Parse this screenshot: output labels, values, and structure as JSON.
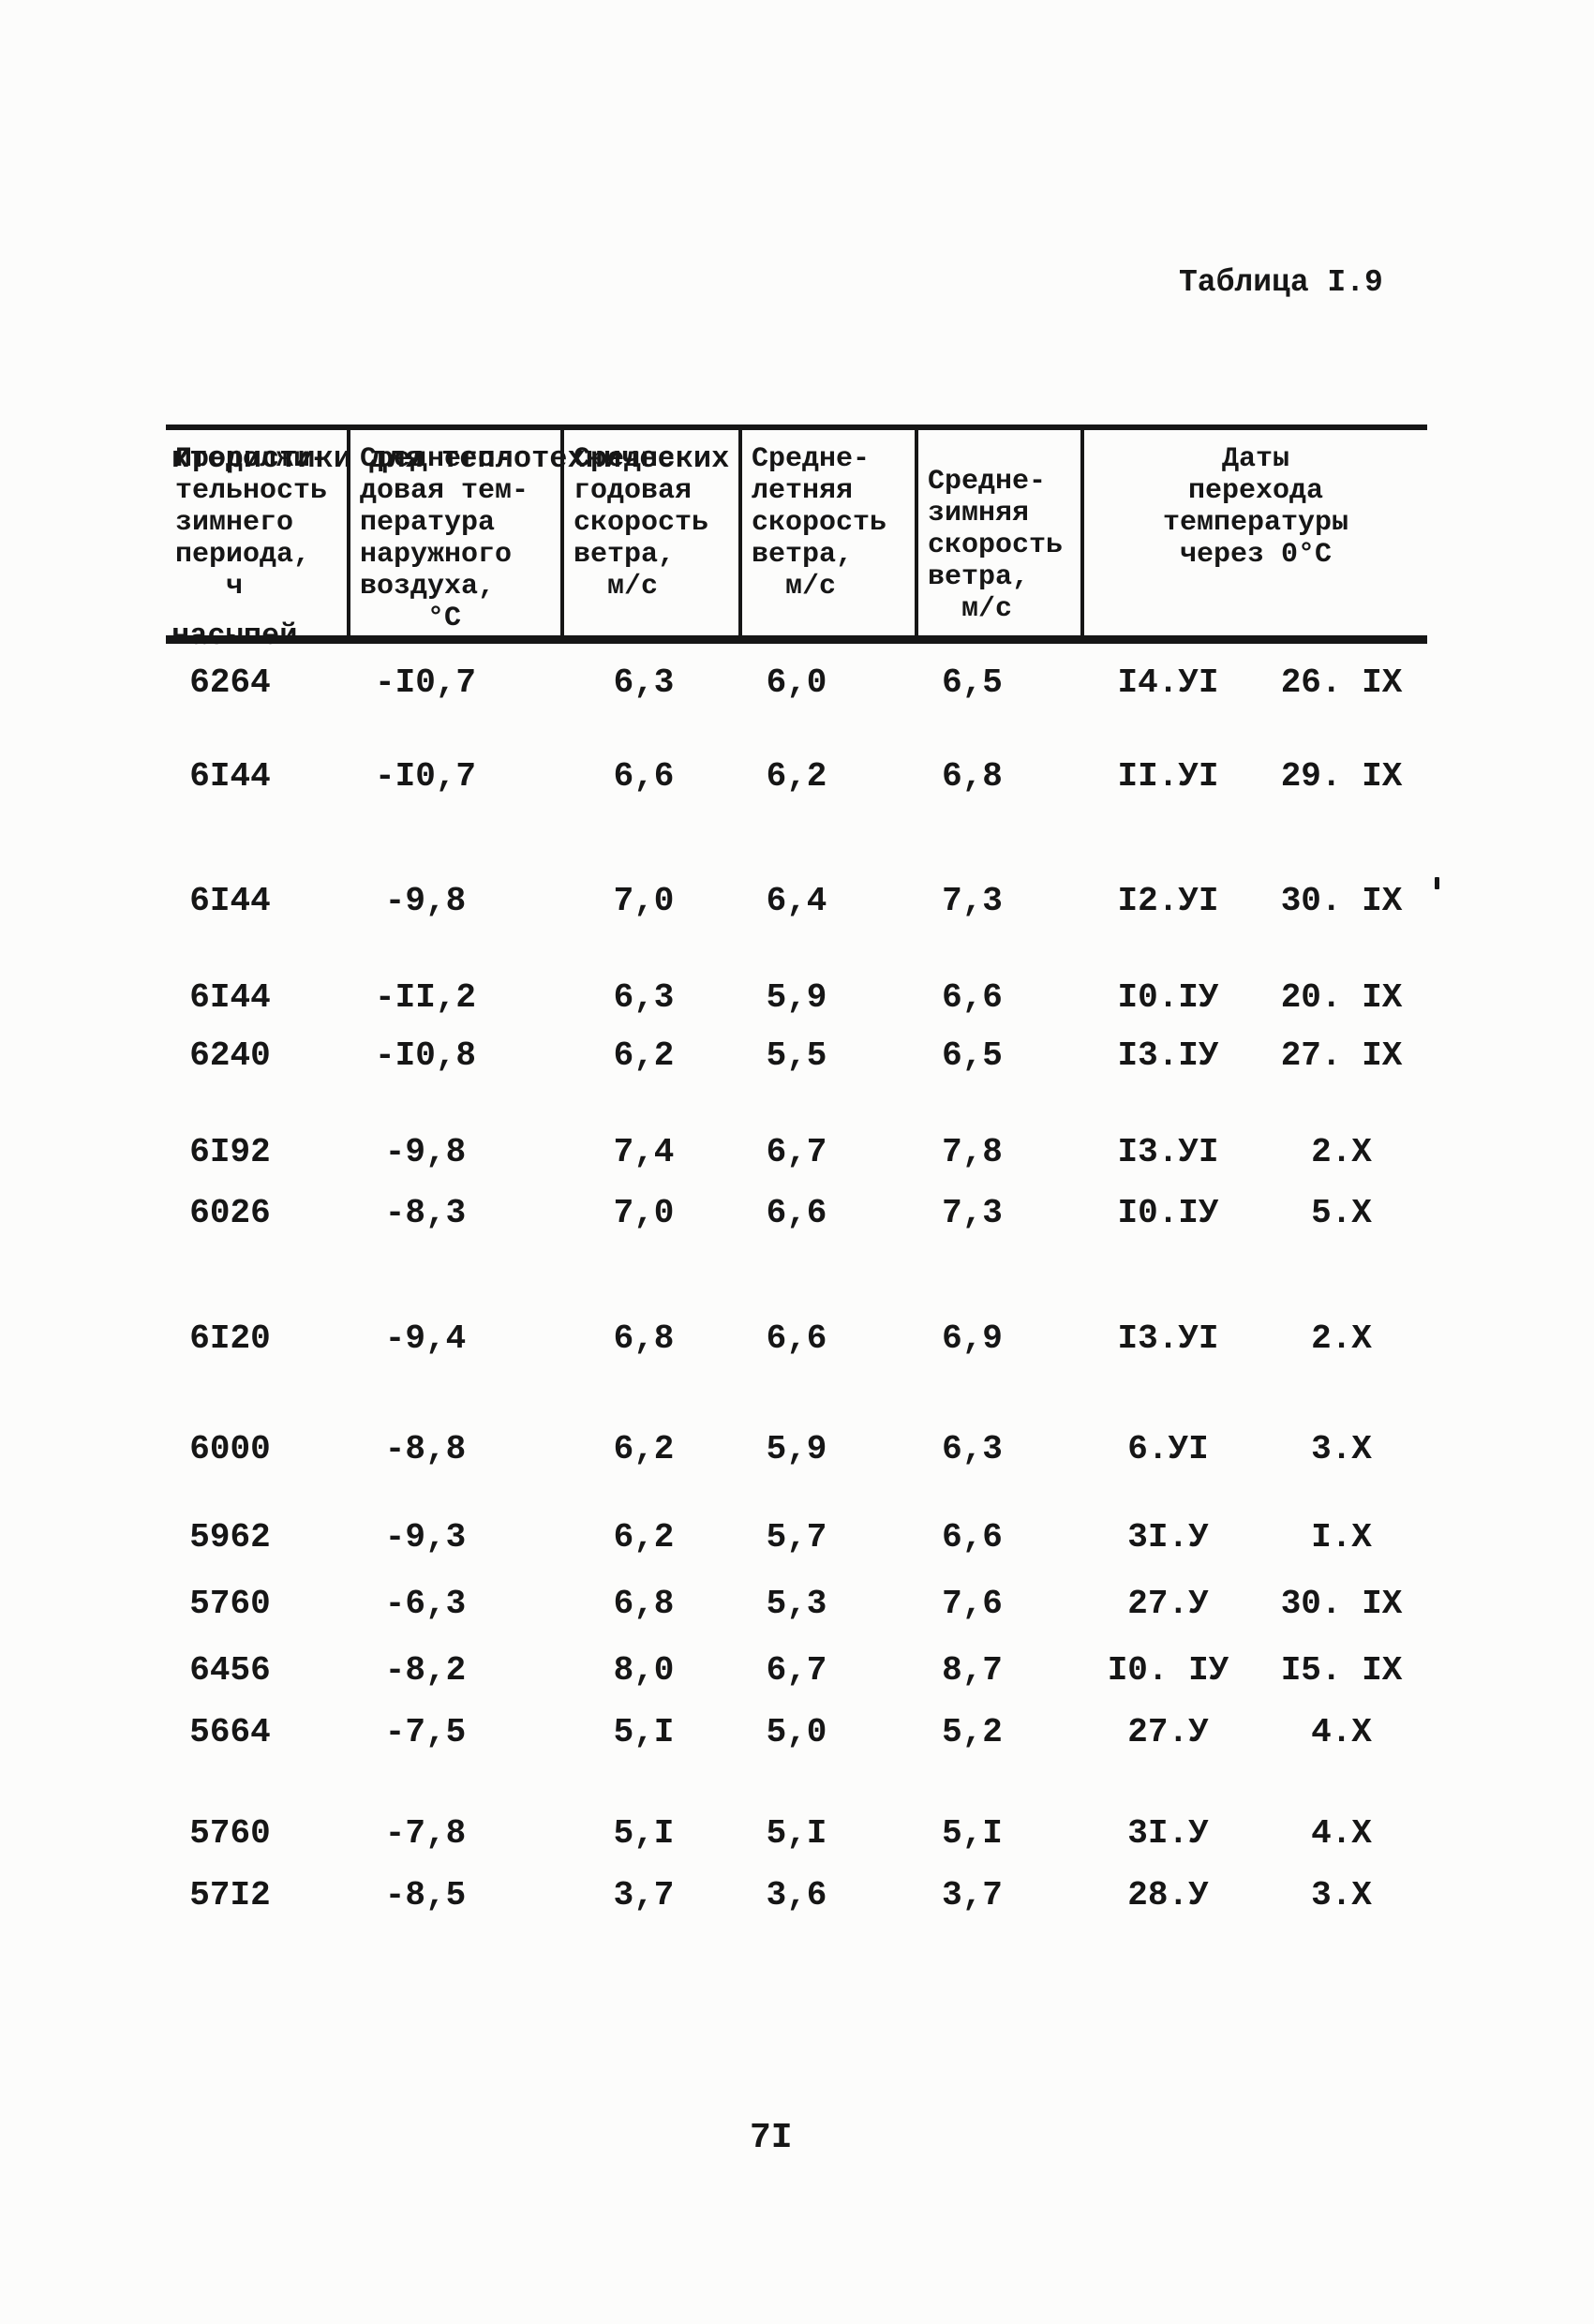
{
  "colors": {
    "ink": "#161616",
    "paper": "#fcfcfb"
  },
  "page": {
    "table_label": "Таблица I.9",
    "intro_line1": "ктеристики для теплотехнических",
    "intro_line2": "насыпей",
    "page_number": "7I"
  },
  "table": {
    "headers": [
      {
        "name": "winter-period-duration",
        "lines": [
          "Продолжи-",
          "тельность",
          "зимнего",
          "периода,",
          "   ч"
        ]
      },
      {
        "name": "mean-annual-air-temperature",
        "lines": [
          "Среднего-",
          "довая тем-",
          "пература",
          "наружного",
          "воздуха,",
          "    °С"
        ]
      },
      {
        "name": "mean-annual-wind-speed",
        "lines": [
          "Средне-",
          "годовая",
          "скорость",
          "ветра,",
          "  м/с"
        ]
      },
      {
        "name": "mean-summer-wind-speed",
        "lines": [
          "Средне-",
          "летняя",
          "скорость",
          "ветра,",
          "  м/с"
        ]
      },
      {
        "name": "mean-winter-wind-speed",
        "lines": [
          "Средне-",
          "зимняя",
          "скорость",
          "ветра,",
          "  м/с"
        ]
      },
      {
        "name": "zero-crossing-dates",
        "lines": [
          "Даты",
          "перехода",
          "температуры",
          "через 0°С"
        ]
      }
    ],
    "rows": [
      [
        "6264",
        "-I0,7",
        "6,3",
        "6,0",
        "6,5",
        "I4.УI",
        "26. IX"
      ],
      [
        "6I44",
        "-I0,7",
        "6,6",
        "6,2",
        "6,8",
        "II.УI",
        "29. IX"
      ],
      [
        "6I44",
        "-9,8",
        "7,0",
        "6,4",
        "7,3",
        "I2.УI",
        "30. IX"
      ],
      [
        "6I44",
        "-II,2",
        "6,3",
        "5,9",
        "6,6",
        "I0.IУ",
        "20. IX"
      ],
      [
        "6240",
        "-I0,8",
        "6,2",
        "5,5",
        "6,5",
        "I3.IУ",
        "27. IX"
      ],
      [
        "6I92",
        "-9,8",
        "7,4",
        "6,7",
        "7,8",
        "I3.УI",
        "2.X"
      ],
      [
        "6026",
        "-8,3",
        "7,0",
        "6,6",
        "7,3",
        "I0.IУ",
        "5.X"
      ],
      [
        "6I20",
        "-9,4",
        "6,8",
        "6,6",
        "6,9",
        "I3.УI",
        "2.X"
      ],
      [
        "6000",
        "-8,8",
        "6,2",
        "5,9",
        "6,3",
        "6.УI",
        "3.X"
      ],
      [
        "5962",
        "-9,3",
        "6,2",
        "5,7",
        "6,6",
        "3I.У",
        "I.X"
      ],
      [
        "5760",
        "-6,3",
        "6,8",
        "5,3",
        "7,6",
        "27.У",
        "30. IX"
      ],
      [
        "6456",
        "-8,2",
        "8,0",
        "6,7",
        "8,7",
        "I0. IУ",
        "I5. IX"
      ],
      [
        "5664",
        "-7,5",
        "5,I",
        "5,0",
        "5,2",
        "27.У",
        "4.X"
      ],
      [
        "5760",
        "-7,8",
        "5,I",
        "5,I",
        "5,I",
        "3I.У",
        "4.X"
      ],
      [
        "57I2",
        "-8,5",
        "3,7",
        "3,6",
        "3,7",
        "28.У",
        "3.X"
      ]
    ]
  }
}
